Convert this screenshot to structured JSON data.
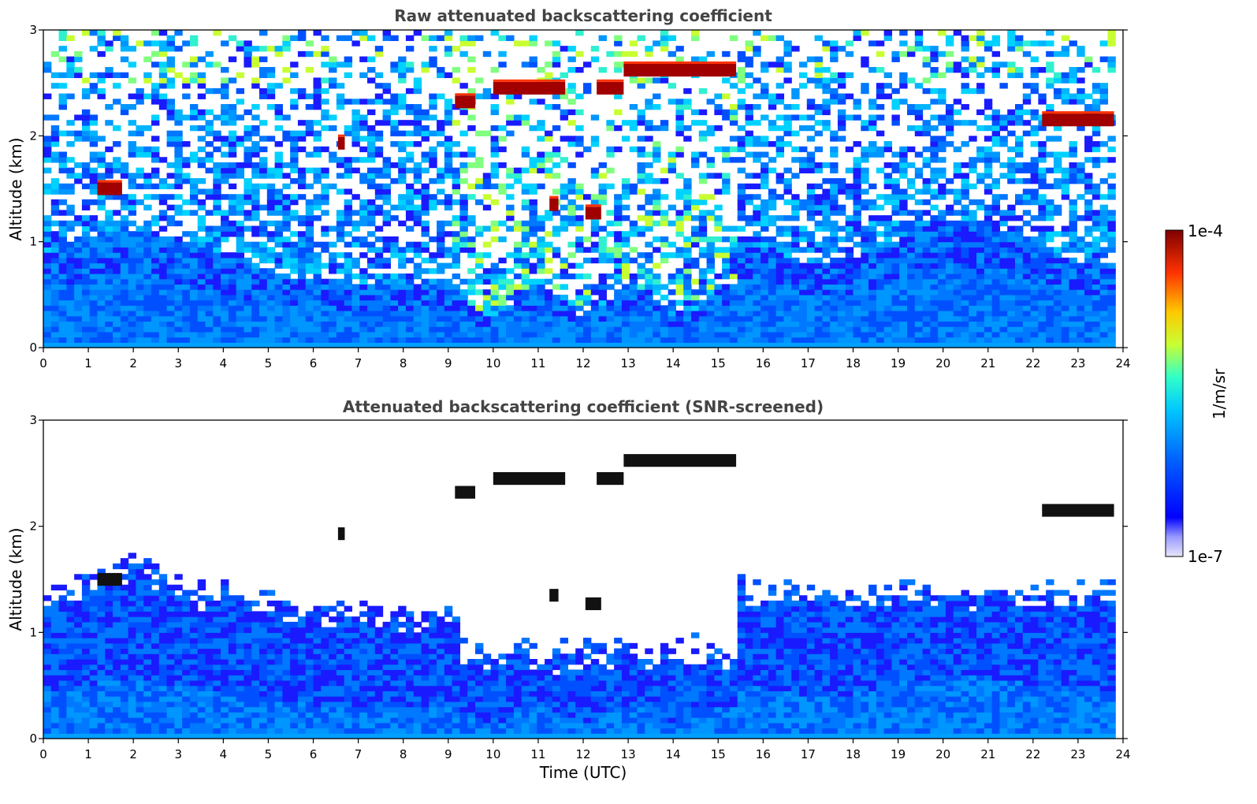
{
  "chart_data": [
    {
      "type": "heatmap",
      "title": "Raw attenuated backscattering coefficient",
      "ylabel": "Altitude (km)",
      "xlabel": "",
      "xlim": [
        0,
        24
      ],
      "ylim": [
        0,
        3
      ],
      "xticks": [
        "0",
        "1",
        "2",
        "3",
        "4",
        "5",
        "6",
        "7",
        "8",
        "9",
        "10",
        "11",
        "12",
        "13",
        "14",
        "15",
        "16",
        "17",
        "18",
        "19",
        "20",
        "21",
        "22",
        "23",
        "24"
      ],
      "yticks": [
        "0",
        "1",
        "2",
        "3"
      ],
      "screened": false,
      "cloud_layers": [
        {
          "t0": 1.2,
          "t1": 1.75,
          "alt": 1.5
        },
        {
          "t0": 6.55,
          "t1": 6.7,
          "alt": 1.93
        },
        {
          "t0": 9.15,
          "t1": 9.6,
          "alt": 2.32
        },
        {
          "t0": 10.0,
          "t1": 11.6,
          "alt": 2.45
        },
        {
          "t0": 11.25,
          "t1": 11.45,
          "alt": 1.35
        },
        {
          "t0": 12.05,
          "t1": 12.4,
          "alt": 1.27
        },
        {
          "t0": 12.3,
          "t1": 12.9,
          "alt": 2.45
        },
        {
          "t0": 12.9,
          "t1": 15.4,
          "alt": 2.62
        },
        {
          "t0": 22.2,
          "t1": 23.8,
          "alt": 2.15
        }
      ]
    },
    {
      "type": "heatmap",
      "title": "Attenuated backscattering coefficient (SNR-screened)",
      "ylabel": "Altitude (km)",
      "xlabel": "Time (UTC)",
      "xlim": [
        0,
        24
      ],
      "ylim": [
        0,
        3
      ],
      "xticks": [
        "0",
        "1",
        "2",
        "3",
        "4",
        "5",
        "6",
        "7",
        "8",
        "9",
        "10",
        "11",
        "12",
        "13",
        "14",
        "15",
        "16",
        "17",
        "18",
        "19",
        "20",
        "21",
        "22",
        "23",
        "24"
      ],
      "yticks": [
        "0",
        "1",
        "2",
        "3"
      ],
      "screened": true
    }
  ],
  "colorbar": {
    "label": "1/m/sr",
    "max_label": "1e-4",
    "min_label": "1e-7",
    "colors": [
      "#e6e6fa",
      "#0000ff",
      "#0064ff",
      "#00c8ff",
      "#32ffc8",
      "#c8ff32",
      "#ffc800",
      "#ff3200",
      "#7f0000"
    ]
  }
}
